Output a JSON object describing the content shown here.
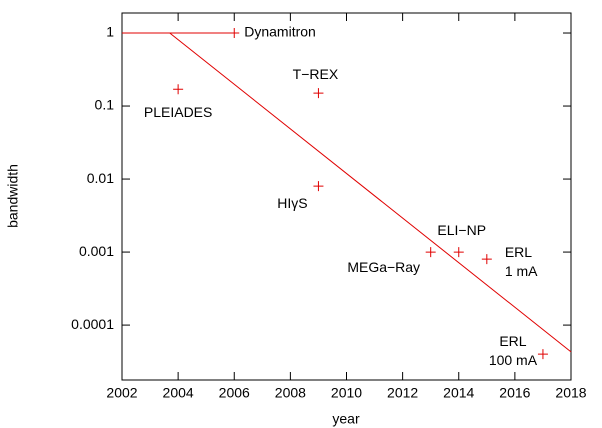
{
  "chart_data": {
    "type": "scatter",
    "xlabel": "year",
    "ylabel": "bandwidth",
    "log_y": true,
    "color": "#e00000",
    "xlim": [
      2002,
      2018
    ],
    "xticks": [
      2002,
      2004,
      2006,
      2008,
      2010,
      2012,
      2014,
      2016,
      2018
    ],
    "ylim": [
      1.77e-05,
      1.88
    ],
    "yticks": [
      1,
      0.1,
      0.01,
      0.001,
      0.0001
    ],
    "points": [
      {
        "label": [
          "Dynamitron"
        ],
        "x": 2006,
        "y": 1
      },
      {
        "label": [
          "PLEIADES"
        ],
        "x": 2004,
        "y": 0.17
      },
      {
        "label": [
          "T−REX"
        ],
        "x": 2009,
        "y": 0.15
      },
      {
        "label": [
          "HIγS"
        ],
        "x": 2009,
        "y": 0.008
      },
      {
        "label": [
          "MEGa−Ray"
        ],
        "x": 2013,
        "y": 0.001
      },
      {
        "label": [
          "ELI−NP"
        ],
        "x": 2014,
        "y": 0.001
      },
      {
        "label": [
          "ERL",
          "1 mA"
        ],
        "x": 2015,
        "y": 0.0008
      },
      {
        "label": [
          "ERL",
          "100 mA"
        ],
        "x": 2017,
        "y": 4e-05
      }
    ],
    "lines": [
      {
        "x": [
          2002,
          2006
        ],
        "y": [
          1,
          1
        ]
      },
      {
        "x": [
          2003.7,
          2018
        ],
        "y": [
          1,
          4.3e-05
        ]
      }
    ]
  }
}
